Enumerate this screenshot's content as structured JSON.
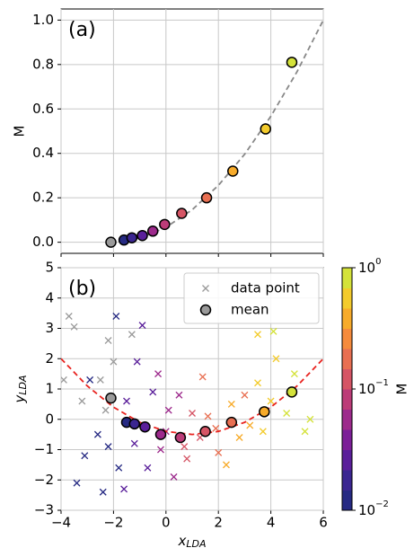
{
  "chart_data": [
    {
      "type": "scatter",
      "panel_label": "(a)",
      "ylabel": "M",
      "xlim": [
        -4,
        6
      ],
      "xticks": [
        -4,
        -2,
        0,
        2,
        4,
        6
      ],
      "ylim": [
        -0.05,
        1.05
      ],
      "yticks": [
        {
          "value": 0,
          "label": "0.0"
        },
        {
          "value": 0.2,
          "label": "0.2"
        },
        {
          "value": 0.4,
          "label": "0.4"
        },
        {
          "value": 0.6,
          "label": "0.6"
        },
        {
          "value": 0.8,
          "label": "0.8"
        },
        {
          "value": 1.0,
          "label": "1.0"
        }
      ],
      "grid": true,
      "fit": {
        "color": "#888888",
        "x": [
          -2.1,
          -1,
          0,
          1,
          2,
          3,
          4,
          5,
          6
        ],
        "y": [
          0,
          0.018,
          0.067,
          0.146,
          0.256,
          0.396,
          0.567,
          0.768,
          1.0
        ]
      },
      "means": {
        "x": [
          -2.1,
          -1.6,
          -1.3,
          -0.9,
          -0.5,
          -0.05,
          0.6,
          1.55,
          2.55,
          3.8,
          4.8
        ],
        "y": [
          0.0,
          0.01,
          0.02,
          0.03,
          0.05,
          0.08,
          0.13,
          0.2,
          0.32,
          0.51,
          0.81
        ]
      }
    },
    {
      "type": "scatter",
      "panel_label": "(b)",
      "xlabel": {
        "base": "x",
        "sub": "LDA"
      },
      "ylabel": {
        "base": "y",
        "sub": "LDA"
      },
      "xlim": [
        -4,
        6
      ],
      "xticks": [
        {
          "value": -4,
          "label": "−4"
        },
        {
          "value": -2,
          "label": "−2"
        },
        0,
        2,
        4,
        6
      ],
      "ylim": [
        -3,
        5
      ],
      "yticks": [
        {
          "value": -3,
          "label": "−3"
        },
        {
          "value": -2,
          "label": "−2"
        },
        {
          "value": -1,
          "label": "−1"
        },
        0,
        1,
        2,
        3,
        4,
        5
      ],
      "grid": true,
      "legend": "upper right",
      "fit": {
        "color": "#e8231f",
        "x": [
          -4,
          -3,
          -2,
          -1,
          0,
          1,
          2,
          3,
          4,
          5,
          6
        ],
        "y": [
          2.0,
          1.1,
          0.4,
          -0.1,
          -0.4,
          -0.5,
          -0.4,
          -0.1,
          0.4,
          1.1,
          2.0
        ]
      },
      "points": {
        "name": "data point",
        "x": [
          -3.7,
          -3.5,
          -2.2,
          -1.3,
          -2.5,
          -3.2,
          -2.3,
          -3.9,
          -2.0,
          -2.9,
          -2.6,
          -3.1,
          -2.4,
          -1.9,
          -2.2,
          -3.4,
          -1.8,
          -1.5,
          -1.1,
          -0.9,
          -1.2,
          -0.7,
          -1.6,
          -0.5,
          -1.0,
          -0.3,
          0.1,
          -0.2,
          0.3,
          0.5,
          0.0,
          0.7,
          1.0,
          1.3,
          0.8,
          1.6,
          2.0,
          1.9,
          1.4,
          3.0,
          2.5,
          2.8,
          3.2,
          2.3,
          3.5,
          4.0,
          3.7,
          4.2,
          3.5,
          4.9,
          5.3,
          4.6,
          5.5,
          4.1
        ],
        "y": [
          3.4,
          3.05,
          2.6,
          2.8,
          1.3,
          0.6,
          0.3,
          1.3,
          1.9,
          1.3,
          -0.5,
          -1.2,
          -2.4,
          3.4,
          -0.9,
          -2.1,
          -1.6,
          0.6,
          1.9,
          3.1,
          -0.8,
          -1.6,
          -2.3,
          0.9,
          -0.2,
          1.5,
          0.3,
          -1.0,
          -1.9,
          0.8,
          -0.4,
          -0.9,
          0.2,
          -0.6,
          -1.3,
          0.1,
          -1.1,
          -0.3,
          1.4,
          0.8,
          0.5,
          -0.6,
          -0.2,
          -1.5,
          1.2,
          0.6,
          -0.4,
          2.0,
          2.8,
          1.5,
          -0.4,
          0.2,
          0.0,
          2.9
        ],
        "M": [
          0.005,
          0.005,
          0.005,
          0.005,
          0.005,
          0.005,
          0.005,
          0.005,
          0.005,
          0.012,
          0.012,
          0.012,
          0.012,
          0.012,
          0.012,
          0.012,
          0.012,
          0.025,
          0.025,
          0.025,
          0.025,
          0.025,
          0.025,
          0.025,
          0.025,
          0.05,
          0.05,
          0.05,
          0.05,
          0.05,
          0.05,
          0.1,
          0.1,
          0.1,
          0.1,
          0.2,
          0.2,
          0.2,
          0.2,
          0.2,
          0.32,
          0.32,
          0.32,
          0.32,
          0.5,
          0.5,
          0.5,
          0.5,
          0.5,
          0.8,
          0.8,
          0.8,
          0.8,
          0.8
        ]
      },
      "means": {
        "name": "mean",
        "x": [
          -2.1,
          -1.5,
          -1.2,
          -0.8,
          -0.2,
          0.55,
          1.5,
          2.5,
          3.75,
          4.8
        ],
        "y": [
          0.7,
          -0.1,
          -0.15,
          -0.25,
          -0.5,
          -0.6,
          -0.4,
          -0.1,
          0.25,
          0.9
        ],
        "M": [
          0.0,
          0.01,
          0.02,
          0.03,
          0.05,
          0.08,
          0.13,
          0.2,
          0.32,
          0.81
        ]
      },
      "colorbar": {
        "label": "M",
        "log": true,
        "lim": [
          0.01,
          1
        ],
        "ticks": [
          {
            "value": 0.01,
            "label": "10",
            "sup": "−2"
          },
          {
            "value": 0.1,
            "label": "10",
            "sup": "−1"
          },
          {
            "value": 1,
            "label": "10",
            "sup": "0"
          }
        ],
        "colors": [
          "#262a83",
          "#3b2691",
          "#5a1f9a",
          "#7c1f98",
          "#9d2a8c",
          "#bc3c78",
          "#d55565",
          "#e86f52",
          "#f58b3c",
          "#f7ab2a",
          "#f3cb2c",
          "#d4e23a"
        ],
        "under": "#9a9a9a"
      }
    }
  ]
}
